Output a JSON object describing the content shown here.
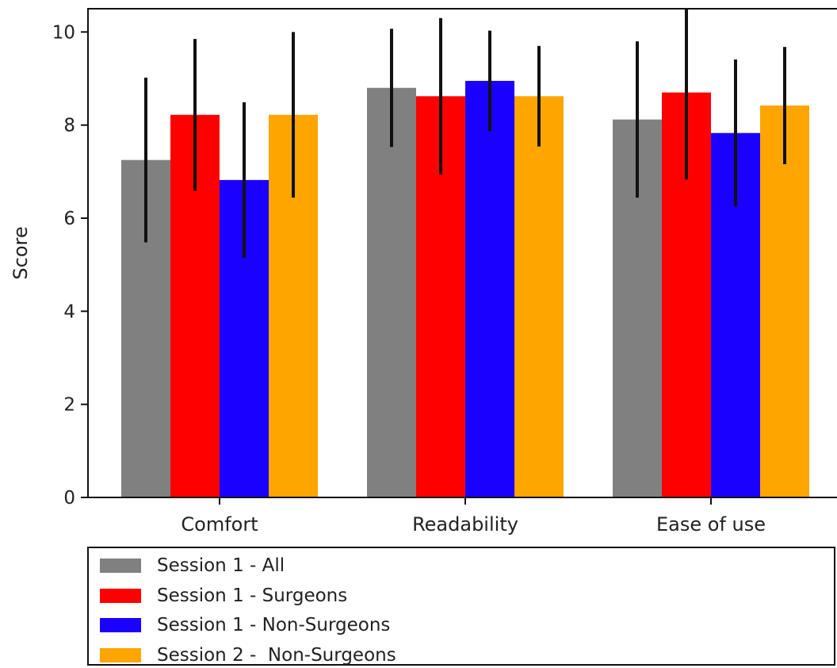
{
  "chart_data": {
    "type": "bar",
    "categories": [
      "Comfort",
      "Readability",
      "Ease of use"
    ],
    "series": [
      {
        "name": "Session 1 - All",
        "color": "#808080",
        "values": [
          7.25,
          8.8,
          8.12
        ],
        "errors": [
          1.77,
          1.27,
          1.68
        ]
      },
      {
        "name": "Session 1 - Surgeons",
        "color": "#ff0000",
        "values": [
          8.22,
          8.62,
          8.7
        ],
        "errors": [
          1.63,
          1.68,
          1.87
        ]
      },
      {
        "name": "Session 1 - Non-Surgeons",
        "color": "#1a00ff",
        "values": [
          6.82,
          8.95,
          7.83
        ],
        "errors": [
          1.67,
          1.08,
          1.58
        ]
      },
      {
        "name": "Session 2 -  Non-Surgeons",
        "color": "#ffa500",
        "values": [
          8.22,
          8.62,
          8.42
        ],
        "errors": [
          1.78,
          1.08,
          1.26
        ]
      }
    ],
    "xlabel": "",
    "ylabel": "Score",
    "ylim": [
      0,
      10.5
    ],
    "yticks": [
      0,
      2,
      4,
      6,
      8,
      10
    ],
    "grid": false,
    "legend_position": "below"
  }
}
